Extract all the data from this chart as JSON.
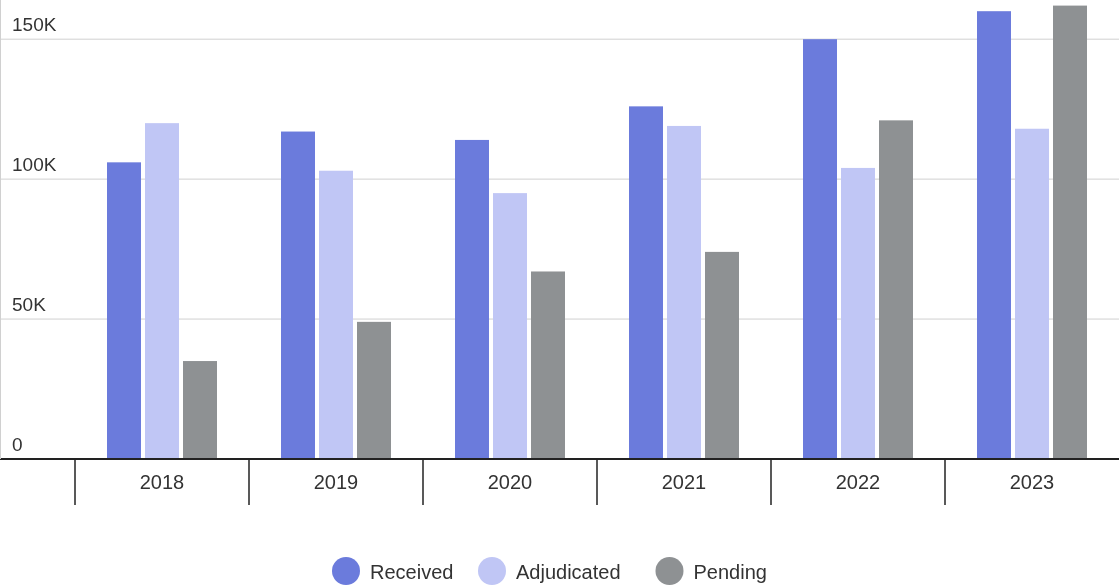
{
  "chart_data": {
    "type": "bar",
    "categories": [
      "2018",
      "2019",
      "2020",
      "2021",
      "2022",
      "2023"
    ],
    "series": [
      {
        "name": "Received",
        "color": "#6b7bdc",
        "values": [
          106000,
          117000,
          114000,
          126000,
          150000,
          160000
        ]
      },
      {
        "name": "Adjudicated",
        "color": "#c0c6f5",
        "values": [
          120000,
          103000,
          95000,
          119000,
          104000,
          118000
        ]
      },
      {
        "name": "Pending",
        "color": "#8e9193",
        "values": [
          35000,
          49000,
          67000,
          74000,
          121000,
          162000
        ]
      }
    ],
    "ylim": [
      0,
      164000
    ],
    "yticks": [
      {
        "value": 0,
        "label": "0"
      },
      {
        "value": 50000,
        "label": "50K"
      },
      {
        "value": 100000,
        "label": "100K"
      },
      {
        "value": 150000,
        "label": "150K"
      }
    ],
    "grid": "y",
    "legend": "bottom"
  }
}
